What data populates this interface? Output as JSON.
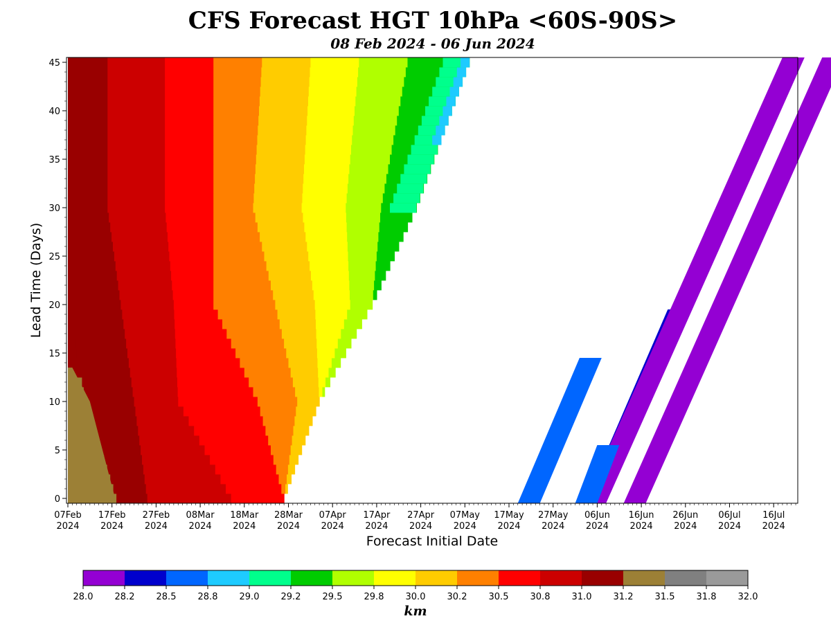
{
  "chart_data": {
    "type": "heatmap",
    "title": "CFS Forecast HGT 10hPa <60S-90S>",
    "subtitle": "08 Feb 2024 - 06 Jun 2024",
    "xlabel": "Forecast Initial Date",
    "ylabel": "Lead Time (Days)",
    "x_axis": {
      "start": "2024-02-07",
      "end": "2024-07-26",
      "ticks": [
        {
          "day": 0,
          "label": "07Feb",
          "year": "2024"
        },
        {
          "day": 10,
          "label": "17Feb",
          "year": "2024"
        },
        {
          "day": 20,
          "label": "27Feb",
          "year": "2024"
        },
        {
          "day": 30,
          "label": "08Mar",
          "year": "2024"
        },
        {
          "day": 40,
          "label": "18Mar",
          "year": "2024"
        },
        {
          "day": 50,
          "label": "28Mar",
          "year": "2024"
        },
        {
          "day": 60,
          "label": "07Apr",
          "year": "2024"
        },
        {
          "day": 70,
          "label": "17Apr",
          "year": "2024"
        },
        {
          "day": 80,
          "label": "27Apr",
          "year": "2024"
        },
        {
          "day": 90,
          "label": "07May",
          "year": "2024"
        },
        {
          "day": 100,
          "label": "17May",
          "year": "2024"
        },
        {
          "day": 110,
          "label": "27May",
          "year": "2024"
        },
        {
          "day": 120,
          "label": "06Jun",
          "year": "2024"
        },
        {
          "day": 130,
          "label": "16Jun",
          "year": "2024"
        },
        {
          "day": 140,
          "label": "26Jun",
          "year": "2024"
        },
        {
          "day": 150,
          "label": "06Jul",
          "year": "2024"
        },
        {
          "day": 160,
          "label": "16Jul",
          "year": "2024"
        }
      ]
    },
    "y_axis": {
      "min": -0.5,
      "max": 45.5,
      "ticks": [
        0,
        5,
        10,
        15,
        20,
        25,
        30,
        35,
        40,
        45
      ]
    },
    "colorbar": {
      "label": "km",
      "levels": [
        "28.0",
        "28.2",
        "28.5",
        "28.8",
        "29.0",
        "29.2",
        "29.5",
        "29.8",
        "30.0",
        "30.2",
        "30.5",
        "30.8",
        "31.0",
        "31.2",
        "31.5",
        "31.8",
        "32.0"
      ],
      "colors": [
        "#9400d3",
        "#0000cd",
        "#0066ff",
        "#1ecbff",
        "#00ff8c",
        "#00cc00",
        "#b0ff00",
        "#ffff00",
        "#ffcc00",
        "#ff8000",
        "#ff0000",
        "#cc0000",
        "#990000",
        "#9c8036",
        "#808080",
        "#9a9a9a"
      ]
    },
    "bands_by_lead_day": {
      "description_keys": [
        "lead_day",
        "boundaries (init day offsets where each colour level starts, from 31.2 down to 28.8)"
      ],
      "rows": [
        {
          "lead": 0,
          "b": [
            11,
            18,
            37,
            49,
            49,
            49,
            49,
            49,
            49
          ]
        },
        {
          "lead": 10,
          "b": [
            4,
            15,
            25,
            43,
            52,
            57,
            57,
            57,
            57
          ]
        },
        {
          "lead": 20,
          "b": [
            0,
            12,
            24,
            33,
            47,
            56,
            64,
            69,
            69
          ]
        },
        {
          "lead": 30,
          "b": [
            0,
            9,
            22,
            33,
            42,
            53,
            63,
            71,
            79
          ]
        },
        {
          "lead": 45,
          "b": [
            0,
            9,
            22,
            33,
            44,
            55,
            66,
            77,
            91
          ]
        }
      ]
    },
    "diagonal_features": [
      {
        "name": "blue 28.5 band A",
        "level": "28.5",
        "start_day": 102,
        "end_day": 107,
        "lead_max": 14
      },
      {
        "name": "dark blue 28.2 band A",
        "level": "28.2",
        "start_day": 117,
        "end_day": 120,
        "lead_max": 19
      },
      {
        "name": "purple 28.0 band A",
        "level": "28.0",
        "start_day": 117,
        "end_day": 122,
        "lead_max": 45
      },
      {
        "name": "blue 28.5 band B",
        "level": "28.5",
        "start_day": 115,
        "end_day": 120,
        "lead_max": 5
      },
      {
        "name": "purple 28.0 band B",
        "level": "28.0",
        "start_day": 126,
        "end_day": 131,
        "lead_max": 45
      }
    ]
  }
}
